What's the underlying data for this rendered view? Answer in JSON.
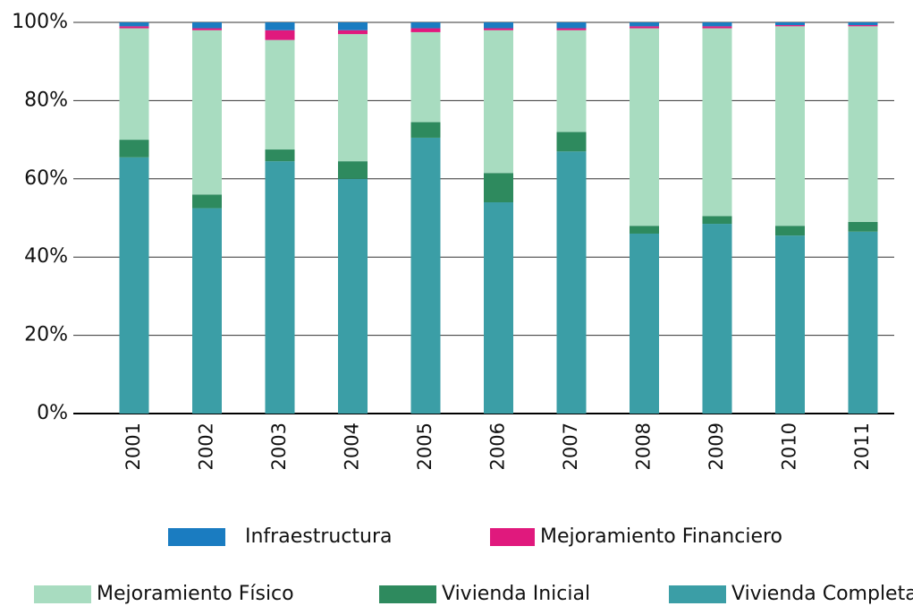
{
  "chart_data": {
    "type": "stacked_bar",
    "categories": [
      "2001",
      "2002",
      "2003",
      "2004",
      "2005",
      "2006",
      "2007",
      "2008",
      "2009",
      "2010",
      "2011"
    ],
    "series": [
      {
        "name": "Vivienda Completa",
        "color": "#3b9ea6",
        "values": [
          65.5,
          52.5,
          64.5,
          60,
          70.5,
          54,
          67,
          46,
          48.5,
          45.5,
          46.5
        ]
      },
      {
        "name": "Vivienda Inicial",
        "color": "#2e8a5e",
        "values": [
          4.5,
          3.5,
          3,
          4.5,
          4,
          7.5,
          5,
          2,
          2,
          2.5,
          2.5
        ]
      },
      {
        "name": "Mejoramiento Físico",
        "color": "#a8dcc0",
        "values": [
          28.5,
          42,
          28,
          32.5,
          23,
          36.5,
          26,
          50.5,
          48,
          51,
          50
        ]
      },
      {
        "name": "Mejoramiento Financiero",
        "color": "#e0197d",
        "values": [
          0.5,
          0.5,
          2.5,
          1,
          1,
          0.5,
          0.5,
          0.5,
          0.5,
          0.3,
          0.3
        ]
      },
      {
        "name": "Infraestructura",
        "color": "#1a7cc1",
        "values": [
          1,
          1.5,
          2,
          2,
          1.5,
          1.5,
          1.5,
          1,
          1,
          0.7,
          0.7
        ]
      }
    ],
    "ylim": [
      0,
      100
    ],
    "yticks": [
      {
        "value": 0,
        "label": "0%"
      },
      {
        "value": 20,
        "label": "20%"
      },
      {
        "value": 40,
        "label": "40%"
      },
      {
        "value": 60,
        "label": "60%"
      },
      {
        "value": 80,
        "label": "80%"
      },
      {
        "value": 100,
        "label": "100%"
      }
    ],
    "grid": true
  }
}
